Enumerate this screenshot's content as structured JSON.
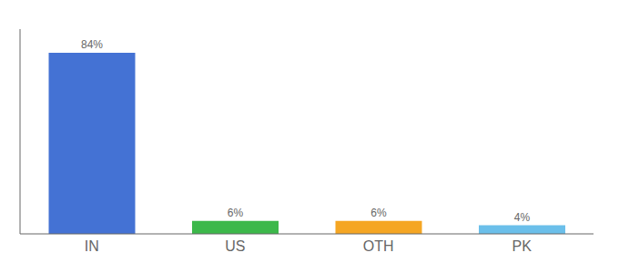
{
  "chart_data": {
    "type": "bar",
    "categories": [
      "IN",
      "US",
      "OTH",
      "PK"
    ],
    "values": [
      84,
      6,
      6,
      4
    ],
    "value_labels": [
      "84%",
      "6%",
      "6%",
      "4%"
    ],
    "data_labels": true,
    "colors": [
      "#4472d4",
      "#3cb84a",
      "#f5a623",
      "#6bbfea"
    ],
    "ylim": [
      0,
      95
    ],
    "tick_labels": "x",
    "grid": false
  }
}
